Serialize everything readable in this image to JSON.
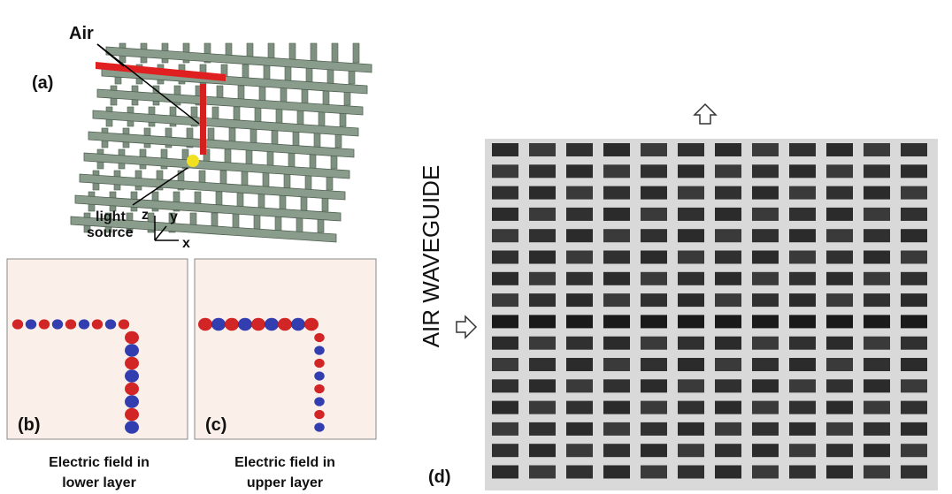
{
  "panel_a": {
    "label": "(a)",
    "air": "Air",
    "source_line1": "light",
    "source_line2": "source",
    "axis_z": "z",
    "axis_y": "y",
    "axis_x": "x"
  },
  "panel_b": {
    "label": "(b)",
    "caption_line1": "Electric field in",
    "caption_line2": "lower layer"
  },
  "panel_c": {
    "label": "(c)",
    "caption_line1": "Electric field in",
    "caption_line2": "upper layer"
  },
  "panel_d": {
    "label": "(d)",
    "side_label": "AIR WAVEGUIDE"
  }
}
